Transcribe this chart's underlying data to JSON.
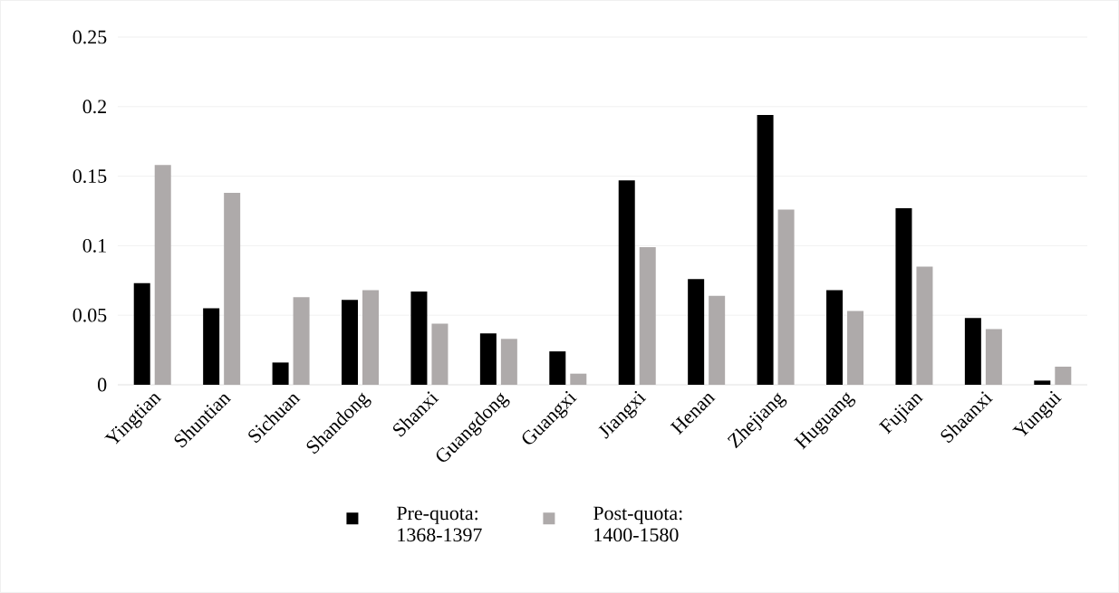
{
  "chart_data": {
    "type": "bar",
    "categories": [
      "Yingtian",
      "Shuntian",
      "Sichuan",
      "Shandong",
      "Shanxi",
      "Guangdong",
      "Guangxi",
      "Jiangxi",
      "Henan",
      "Zhejiang",
      "Huguang",
      "Fujian",
      "Shaanxi",
      "Yungui"
    ],
    "series": [
      {
        "name": "Pre-quota: 1368-1397",
        "color": "#000000",
        "values": [
          0.073,
          0.055,
          0.016,
          0.061,
          0.067,
          0.037,
          0.024,
          0.147,
          0.076,
          0.194,
          0.068,
          0.127,
          0.048,
          0.003
        ]
      },
      {
        "name": "Post-quota: 1400-1580",
        "color": "#aeaaaa",
        "values": [
          0.158,
          0.138,
          0.063,
          0.068,
          0.044,
          0.033,
          0.008,
          0.099,
          0.064,
          0.126,
          0.053,
          0.085,
          0.04,
          0.013
        ]
      }
    ],
    "ylim": [
      0,
      0.25
    ],
    "yticks": [
      0,
      0.05,
      0.1,
      0.15,
      0.2,
      0.25
    ],
    "grid": "y",
    "legend": "bottom"
  }
}
